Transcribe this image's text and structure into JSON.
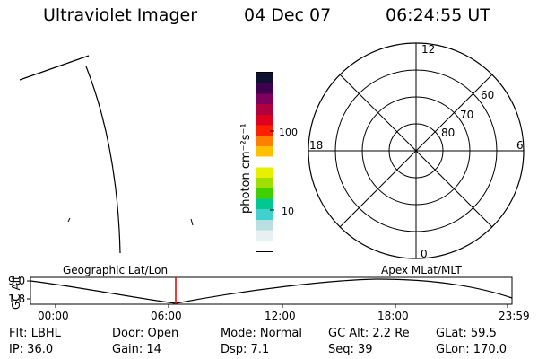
{
  "header": {
    "title": "Ultraviolet Imager",
    "date": "04 Dec 07",
    "time": "06:24:55 UT"
  },
  "colorbar": {
    "unit_label": "photon cm⁻²s⁻¹",
    "tick_100": "100",
    "tick_10": "10",
    "colors_bottom_to_top": [
      "#ffffff",
      "#e8f0f0",
      "#b8e0e0",
      "#40d0d0",
      "#00c890",
      "#40d000",
      "#a0e000",
      "#e8f000",
      "#ffffff",
      "#ffc000",
      "#ff8000",
      "#ff2000",
      "#e00020",
      "#b00040",
      "#800060",
      "#400050",
      "#101030"
    ]
  },
  "polar": {
    "mlt_top": "12",
    "mlt_left": "18",
    "mlt_right": "6",
    "mlt_bottom": "0",
    "lat_60": "60",
    "lat_70": "70",
    "lat_80": "80"
  },
  "timeline": {
    "left_label": "Geographic Lat/Lon",
    "right_label": "Apex MLat/MLT",
    "axis_title": "GC Alt",
    "y_top": "9.0",
    "y_bottom": "1.8",
    "x_ticks": [
      "00:00",
      "06:00",
      "12:00",
      "18:00",
      "23:59"
    ],
    "current_time_marker_color": "#e00000"
  },
  "info": {
    "flt": "Flt: LBHL",
    "door": "Door: Open",
    "mode": "Mode: Normal",
    "gc_alt": "GC Alt: 2.2 Re",
    "glat": "GLat:  59.5",
    "ip": "IP: 36.0",
    "gain": "Gain: 14",
    "dsp": "Dsp:      7.1",
    "seq": "Seq: 39",
    "glon": "GLon: 170.0"
  }
}
